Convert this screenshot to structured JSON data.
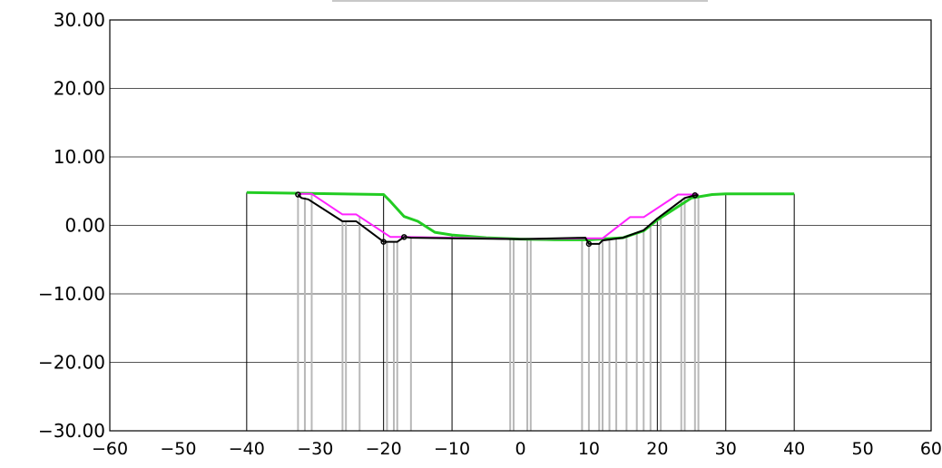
{
  "chart_data": {
    "type": "line",
    "title": "",
    "xlabel": "",
    "ylabel": "",
    "xlim": [
      -60,
      60
    ],
    "ylim": [
      -30,
      30
    ],
    "grid": "horizontal",
    "x_ticks": [
      "−60",
      "−50",
      "−40",
      "−30",
      "−20",
      "−10",
      "0",
      "10",
      "20",
      "30",
      "40",
      "50",
      "60"
    ],
    "x_tick_values": [
      -60,
      -50,
      -40,
      -30,
      -20,
      -10,
      0,
      10,
      20,
      30,
      40,
      50,
      60
    ],
    "y_ticks": [
      "30.00",
      "20.00",
      "10.00",
      "0.00",
      "−10.00",
      "−20.00",
      "−30.00"
    ],
    "y_tick_values": [
      30,
      20,
      10,
      0,
      -10,
      -20,
      -30
    ],
    "colors": {
      "green": "#22cc22",
      "magenta": "#ff22ff",
      "black": "#000000",
      "grey": "#b8b8b8",
      "grid": "#555555"
    },
    "series": [
      {
        "color": "green",
        "x": [
          -40,
          -20,
          -19,
          -17,
          -15,
          -12.5,
          -10,
          -5,
          0,
          5,
          10,
          15,
          18,
          20,
          25,
          28,
          30,
          40
        ],
        "y": [
          4.8,
          4.5,
          3.5,
          1.3,
          0.6,
          -1,
          -1.4,
          -1.8,
          -2,
          -2.1,
          -2.1,
          -1.8,
          -0.8,
          0.8,
          4,
          4.5,
          4.6,
          4.6
        ]
      },
      {
        "color": "magenta",
        "x": [
          -32.5,
          -30.5,
          -26,
          -24,
          -19,
          -17,
          -10,
          0,
          9,
          12,
          16,
          18,
          23,
          26
        ],
        "y": [
          4.6,
          4.6,
          1.6,
          1.6,
          -1.7,
          -1.7,
          -1.8,
          -2,
          -1.9,
          -1.9,
          1.2,
          1.2,
          4.5,
          4.5
        ]
      },
      {
        "color": "black",
        "x": [
          -32.5,
          -32,
          -31,
          -26,
          -24,
          -20,
          -19,
          -18,
          -17,
          -16,
          -10,
          0,
          9.5,
          10,
          11.5,
          12,
          15,
          18,
          20,
          24,
          25.5,
          26
        ],
        "y": [
          4.5,
          4,
          3.8,
          0.6,
          0.6,
          -2.4,
          -2.4,
          -2.4,
          -1.7,
          -1.8,
          -1.9,
          -2,
          -1.8,
          -2.7,
          -2.7,
          -2.2,
          -1.8,
          -0.7,
          1,
          4,
          4.4,
          4.4
        ]
      }
    ],
    "black_verticals": [
      {
        "x": -40,
        "y_top": 4.8
      },
      {
        "x": -20,
        "y_top": 4.5
      },
      {
        "x": -10,
        "y_top": -1.4
      },
      {
        "x": 20,
        "y_top": 0.8
      },
      {
        "x": 30,
        "y_top": 4.6
      },
      {
        "x": 40,
        "y_top": 4.6
      }
    ],
    "grey_verticals": [
      {
        "x": -32.5,
        "y_top": 4.5
      },
      {
        "x": -31.5,
        "y_top": 4.1
      },
      {
        "x": -30.5,
        "y_top": 4.6
      },
      {
        "x": -26,
        "y_top": 0.6
      },
      {
        "x": -25.5,
        "y_top": 0.6
      },
      {
        "x": -23.5,
        "y_top": 1.2
      },
      {
        "x": -19.5,
        "y_top": -2.4
      },
      {
        "x": -18.5,
        "y_top": -2.4
      },
      {
        "x": -18,
        "y_top": -2.4
      },
      {
        "x": -16,
        "y_top": -1.8
      },
      {
        "x": -1.5,
        "y_top": -2
      },
      {
        "x": -1,
        "y_top": -2
      },
      {
        "x": 1,
        "y_top": -2
      },
      {
        "x": 1.5,
        "y_top": -2
      },
      {
        "x": 9,
        "y_top": -1.9
      },
      {
        "x": 10,
        "y_top": -2.7
      },
      {
        "x": 11.5,
        "y_top": -2.7
      },
      {
        "x": 12,
        "y_top": -2.2
      },
      {
        "x": 13,
        "y_top": -2
      },
      {
        "x": 14,
        "y_top": -1.9
      },
      {
        "x": 15.5,
        "y_top": -1.6
      },
      {
        "x": 17,
        "y_top": -1
      },
      {
        "x": 18,
        "y_top": -0.7
      },
      {
        "x": 19,
        "y_top": 0.2
      },
      {
        "x": 20.5,
        "y_top": 1.3
      },
      {
        "x": 23.5,
        "y_top": 3.6
      },
      {
        "x": 24,
        "y_top": 4
      },
      {
        "x": 25.5,
        "y_top": 4.4
      },
      {
        "x": 26,
        "y_top": 4.4
      }
    ],
    "black_markers": [
      {
        "x": -32.5,
        "y": 4.5
      },
      {
        "x": -20,
        "y": -2.4
      },
      {
        "x": -17,
        "y": -1.7
      },
      {
        "x": 10,
        "y": -2.7
      },
      {
        "x": 25.5,
        "y": 4.4
      }
    ]
  }
}
